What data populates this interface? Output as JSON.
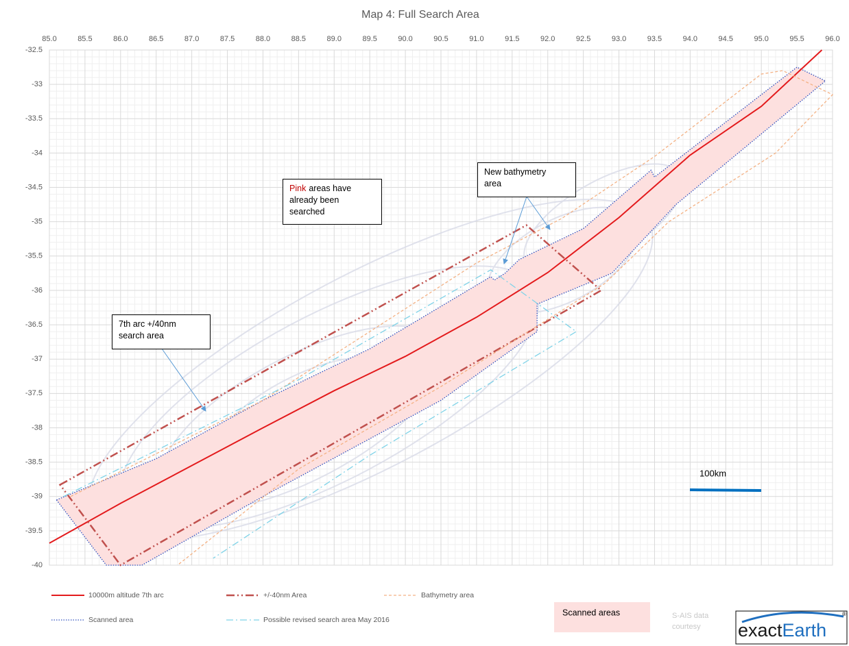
{
  "chart_data": {
    "type": "line",
    "title": "Map 4: Full Search Area",
    "xlim": [
      85,
      96
    ],
    "ylim": [
      -40,
      -32.5
    ],
    "xticks": [
      {
        "value": 85,
        "label": "85.0"
      },
      85.5,
      {
        "value": 86,
        "label": "86.0"
      },
      86.5,
      {
        "value": 87,
        "label": "87.0"
      },
      87.5,
      {
        "value": 88,
        "label": "88.0"
      },
      88.5,
      {
        "value": 89,
        "label": "89.0"
      },
      89.5,
      {
        "value": 90,
        "label": "90.0"
      },
      90.5,
      {
        "value": 91,
        "label": "91.0"
      },
      91.5,
      {
        "value": 92,
        "label": "92.0"
      },
      92.5,
      {
        "value": 93,
        "label": "93.0"
      },
      93.5,
      {
        "value": 94,
        "label": "94.0"
      },
      94.5,
      {
        "value": 95,
        "label": "95.0"
      },
      95.5,
      {
        "value": 96,
        "label": "96.0"
      }
    ],
    "yticks": [
      -32.5,
      -33,
      -33.5,
      -34,
      -34.5,
      -35,
      -35.5,
      -36,
      -36.5,
      -37,
      -37.5,
      -38,
      -38.5,
      -39,
      -39.5,
      -40
    ],
    "grid": true,
    "series": [
      {
        "name": "Scanned area",
        "color": "#2e4fbf",
        "style": "dotted",
        "fill": "#fde0df",
        "closed": true,
        "x": [
          85.1,
          86.5,
          88.0,
          89.5,
          91.2,
          91.25,
          91.4,
          91.6,
          92.5,
          93.45,
          93.5,
          95.5,
          95.9,
          93.8,
          92.9,
          91.85,
          91.85,
          90.5,
          88.0,
          86.3,
          85.8
        ],
        "values": [
          -39.05,
          -38.45,
          -37.6,
          -36.85,
          -35.8,
          -35.85,
          -35.75,
          -35.55,
          -35.1,
          -34.25,
          -34.35,
          -32.75,
          -32.95,
          -34.75,
          -35.75,
          -36.2,
          -36.6,
          -37.6,
          -39.0,
          -40.0,
          -40.0
        ]
      },
      {
        "name": "10000m altitude 7th arc",
        "color": "#e31a1c",
        "style": "solid",
        "x": [
          85.0,
          86.0,
          87.0,
          88.0,
          89.0,
          90.0,
          91.0,
          92.0,
          93.0,
          94.0,
          95.0,
          95.85
        ],
        "values": [
          -39.68,
          -39.1,
          -38.55,
          -38.0,
          -37.46,
          -36.96,
          -36.39,
          -35.74,
          -34.94,
          -34.03,
          -33.32,
          -32.5
        ]
      },
      {
        "name": "+/-40nm Area",
        "color": "#c0504d",
        "style": "dash-dot-dot",
        "closed": true,
        "x": [
          85.15,
          91.7,
          92.75,
          86.0
        ],
        "values": [
          -38.83,
          -35.05,
          -36.0,
          -40.0
        ]
      },
      {
        "name": "Bathymetry area",
        "color": "#f4b183",
        "style": "dashed",
        "x": [
          85.3,
          88.0,
          91.0,
          92.2,
          93.5,
          95.0,
          95.3,
          96.0,
          95.2,
          93.7,
          92.8,
          90.5,
          88.5,
          86.8
        ],
        "values": [
          -39.0,
          -37.6,
          -35.6,
          -34.95,
          -34.05,
          -32.85,
          -32.8,
          -33.15,
          -34.0,
          -35.0,
          -35.9,
          -37.4,
          -38.6,
          -40.0
        ]
      },
      {
        "name": "Possible revised search area May 2016",
        "color": "#7fd3e8",
        "style": "dash-dot",
        "x": [
          85.2,
          88.5,
          91.2,
          92.4,
          89.5,
          87.3
        ],
        "values": [
          -39.0,
          -37.3,
          -35.7,
          -36.6,
          -38.4,
          -39.9
        ]
      }
    ],
    "annotations": [
      {
        "lines": [
          "7th arc +/40nm",
          "search area"
        ]
      },
      {
        "highlight": "Pink",
        "lines": [
          "areas have",
          "already been",
          "searched"
        ]
      },
      {
        "lines": [
          "New bathymetry",
          "area"
        ]
      }
    ],
    "scale_bar": "100km",
    "scanned_areas_label": "Scanned areas",
    "credit": [
      "S-AIS data",
      "courtesy"
    ],
    "logo": [
      "exact",
      "Earth",
      "®"
    ]
  }
}
